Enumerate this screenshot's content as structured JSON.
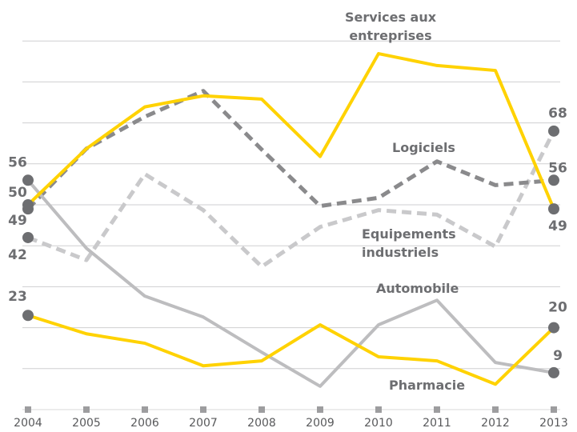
{
  "chart_data": {
    "type": "line",
    "x": [
      "2004",
      "2005",
      "2006",
      "2007",
      "2008",
      "2009",
      "2010",
      "2011",
      "2012",
      "2013"
    ],
    "ylim": [
      0,
      100
    ],
    "yticks": [
      10,
      20,
      30,
      40,
      50,
      60,
      70,
      80,
      90
    ],
    "grid": true,
    "series": [
      {
        "name": "Services aux entreprises",
        "color": "#ffd200",
        "dashed": false,
        "values": [
          50,
          63.7,
          73.9,
          76.6,
          75.8,
          61.8,
          86.9,
          84,
          82.8,
          49
        ]
      },
      {
        "name": "Logiciels",
        "color": "#8a8a8c",
        "dashed": true,
        "values": [
          49,
          63.7,
          71.5,
          77.8,
          63.5,
          49.7,
          51.7,
          60.6,
          54.8,
          56
        ]
      },
      {
        "name": "Equipements industriels",
        "color": "#c9c9cb",
        "dashed": true,
        "values": [
          42,
          36.5,
          57.5,
          48.7,
          34.9,
          44.6,
          48.7,
          47.6,
          39.8,
          68
        ]
      },
      {
        "name": "Automobile",
        "color": "#bdbdbf",
        "dashed": false,
        "values": [
          56,
          39.4,
          27.7,
          22.6,
          14,
          5.7,
          20.7,
          26.7,
          11.5,
          9
        ]
      },
      {
        "name": "Pharmacie",
        "color": "#ffd200",
        "dashed": false,
        "values": [
          23,
          18.5,
          16.2,
          10.7,
          11.9,
          20.7,
          12.9,
          11.9,
          6.2,
          20
        ]
      }
    ]
  }
}
